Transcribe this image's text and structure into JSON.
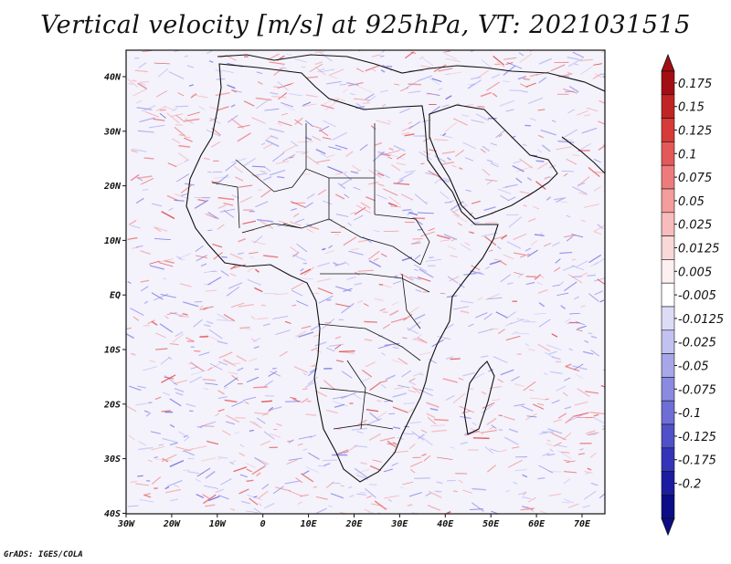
{
  "title": "Vertical velocity [m/s] at 925hPa, VT: 2021031515",
  "footer": "GrADS: IGES/COLA",
  "map": {
    "lat_ticks": [
      "40N",
      "30N",
      "20N",
      "10N",
      "EQ",
      "10S",
      "20S",
      "30S",
      "40S"
    ],
    "lon_ticks": [
      "30W",
      "20W",
      "10W",
      "0",
      "10E",
      "20E",
      "30E",
      "40E",
      "50E",
      "60E",
      "70E"
    ],
    "extent": {
      "lon_min": -30,
      "lon_max": 75,
      "lat_min": -40,
      "lat_max": 45
    }
  },
  "colorbar": {
    "labels": [
      "0.175",
      "0.15",
      "0.125",
      "0.1",
      "0.075",
      "0.05",
      "0.025",
      "0.0125",
      "0.005",
      "-0.005",
      "-0.0125",
      "-0.025",
      "-0.05",
      "-0.075",
      "-0.1",
      "-0.125",
      "-0.175",
      "-0.2"
    ],
    "colors": [
      "#a30e14",
      "#c02425",
      "#d63a39",
      "#e5585a",
      "#ee7b7c",
      "#f39d9d",
      "#f7bcbc",
      "#fad8d8",
      "#fdf0f0",
      "#ffffff",
      "#dcdcf7",
      "#c2c2f0",
      "#a6a6e8",
      "#8a8ae0",
      "#6e6ed6",
      "#5050c8",
      "#3434b8",
      "#1c1ca0",
      "#0c0c86"
    ]
  }
}
